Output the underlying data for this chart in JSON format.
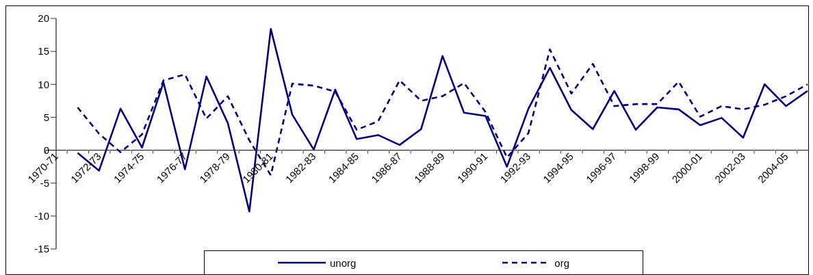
{
  "chart_data": {
    "type": "line",
    "categories": [
      "1970-71",
      null,
      "1972-73",
      null,
      "1974-75",
      null,
      "1976-77",
      null,
      "1978-79",
      null,
      "1980-81",
      null,
      "1982-83",
      null,
      "1984-85",
      null,
      "1986-87",
      null,
      "1988-89",
      null,
      "1990-91",
      null,
      "1992-93",
      null,
      "1994-95",
      null,
      "1996-97",
      null,
      "1998-99",
      null,
      "2000-01",
      null,
      "2002-03",
      null,
      "2004-05",
      null
    ],
    "series": [
      {
        "name": "unorg",
        "color": "#000080",
        "line_style": "solid",
        "values": [
          null,
          -0.4,
          -3.1,
          6.3,
          0.4,
          10.3,
          -2.9,
          11.2,
          4.1,
          -9.3,
          18.4,
          5.4,
          0.1,
          9.2,
          1.7,
          2.3,
          0.8,
          3.2,
          14.3,
          5.7,
          5.2,
          -2.5,
          6.3,
          12.5,
          6.1,
          3.2,
          9.0,
          3.1,
          6.5,
          6.2,
          3.8,
          4.9,
          1.9,
          10.0,
          6.7,
          9.0
        ]
      },
      {
        "name": "org",
        "color": "#000080",
        "line_style": "dashed",
        "values": [
          null,
          6.5,
          2.5,
          -0.3,
          2.4,
          10.6,
          11.5,
          4.8,
          8.2,
          1.5,
          -3.8,
          10.1,
          9.8,
          8.9,
          3.1,
          4.4,
          10.6,
          7.5,
          8.2,
          10.2,
          5.8,
          -1.1,
          2.6,
          15.3,
          8.6,
          13.1,
          6.7,
          7.0,
          7.0,
          10.4,
          5.1,
          6.7,
          6.2,
          6.9,
          8.2,
          10.0
        ]
      }
    ],
    "ylim": [
      -15,
      20
    ],
    "yticks": [
      -15,
      -10,
      -5,
      0,
      5,
      10,
      15,
      20
    ],
    "legend": "bottom",
    "marker": "none"
  }
}
